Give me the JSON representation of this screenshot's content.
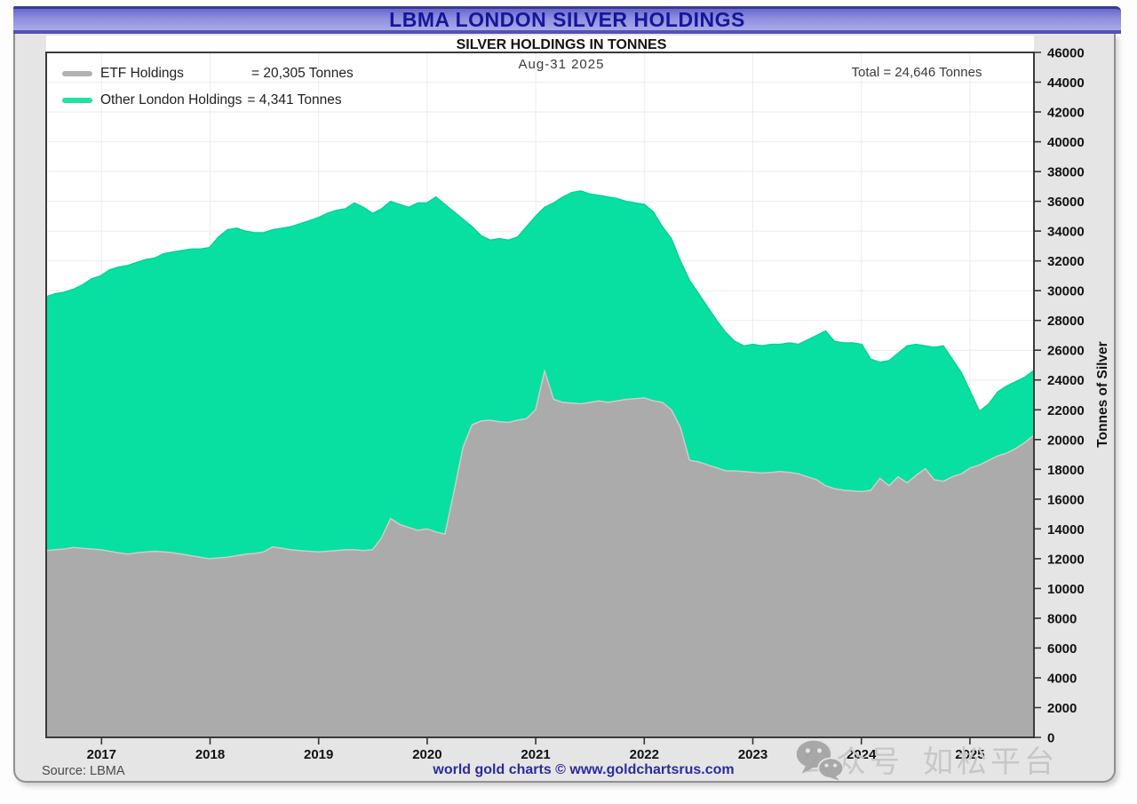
{
  "title_bar": {
    "title": "LBMA LONDON SILVER HOLDINGS"
  },
  "chart_header": {
    "subtitle": "SILVER HOLDINGS IN TONNES",
    "date_label": "Aug-31 2025",
    "total_label": "Total = 24,646 Tonnes"
  },
  "legend": {
    "items": [
      {
        "label": "ETF Holdings",
        "value": "= 20,305 Tonnes",
        "color": "#b2b2b2"
      },
      {
        "label": "Other London Holdings",
        "value": "= 4,341 Tonnes",
        "color": "#1fe3a1"
      }
    ]
  },
  "footer": {
    "source": "Source: LBMA",
    "credit": "world gold charts © www.goldchartsrus.com"
  },
  "watermark": {
    "icon": "wechat-icon",
    "text_1": "公众号",
    "text_2": "如松平台"
  },
  "chart_data": {
    "type": "area",
    "stacked": true,
    "title": "SILVER HOLDINGS IN TONNES",
    "ylabel": "Tonnes of Silver",
    "grid": true,
    "legend_position": "top-left",
    "as_of_date": "Aug-31 2025",
    "total_tonnes": 24646,
    "y_axis": {
      "min": 0,
      "max": 46000,
      "step": 2000
    },
    "x_start_decimal_year": 2016.49,
    "x_end_decimal_year": 2025.59,
    "x_monthly_from": "2016-07",
    "x_monthly_to": "2025-08",
    "x_ticks": [
      "2017",
      "2018",
      "2019",
      "2020",
      "2021",
      "2022",
      "2023",
      "2024",
      "2025"
    ],
    "series": [
      {
        "name": "ETF Holdings",
        "color": "#ababab",
        "edge_color": "#cccccc",
        "final_value_tonnes": 20305,
        "values": [
          12550,
          12600,
          12650,
          12750,
          12700,
          12650,
          12600,
          12500,
          12400,
          12300,
          12400,
          12450,
          12500,
          12450,
          12400,
          12300,
          12200,
          12100,
          12000,
          12050,
          12100,
          12200,
          12300,
          12350,
          12450,
          12800,
          12700,
          12600,
          12550,
          12500,
          12450,
          12500,
          12550,
          12600,
          12600,
          12550,
          12600,
          13400,
          14700,
          14300,
          14100,
          13900,
          14000,
          13800,
          13650,
          16500,
          19500,
          21000,
          21250,
          21300,
          21200,
          21150,
          21300,
          21400,
          22000,
          24600,
          22700,
          22500,
          22450,
          22400,
          22500,
          22600,
          22500,
          22600,
          22700,
          22750,
          22800,
          22600,
          22500,
          22000,
          20800,
          18600,
          18500,
          18300,
          18100,
          17900,
          17900,
          17850,
          17800,
          17750,
          17800,
          17850,
          17800,
          17700,
          17500,
          17300,
          16900,
          16700,
          16600,
          16550,
          16500,
          16600,
          17400,
          16900,
          17500,
          17100,
          17600,
          18050,
          17300,
          17200,
          17500,
          17700,
          18100,
          18300,
          18600,
          18900,
          19100,
          19400,
          19800,
          20305
        ]
      },
      {
        "name": "Other London Holdings",
        "color": "#07e0a0",
        "edge_color": "#00cf93",
        "final_value_tonnes": 4341,
        "values": [
          17050,
          17200,
          17250,
          17350,
          17700,
          18150,
          18400,
          18900,
          19200,
          19400,
          19500,
          19650,
          19700,
          20050,
          20200,
          20400,
          20600,
          20700,
          20900,
          21550,
          22000,
          22000,
          21700,
          21550,
          21450,
          21300,
          21500,
          21700,
          21950,
          22200,
          22450,
          22700,
          22850,
          22900,
          23300,
          23050,
          22600,
          22100,
          21300,
          21500,
          21500,
          22000,
          21900,
          22500,
          22150,
          18800,
          15300,
          13300,
          12450,
          12100,
          12300,
          12250,
          12300,
          12900,
          13000,
          11000,
          13200,
          13800,
          14150,
          14300,
          14000,
          13800,
          13800,
          13600,
          13300,
          13150,
          13000,
          12700,
          11800,
          11500,
          11200,
          12100,
          11300,
          10600,
          9900,
          9300,
          8700,
          8450,
          8600,
          8550,
          8600,
          8550,
          8700,
          8700,
          9200,
          9700,
          10400,
          9900,
          9900,
          9950,
          9900,
          8800,
          7800,
          8400,
          8300,
          9200,
          8800,
          8250,
          8900,
          9100,
          7900,
          6800,
          5100,
          3600,
          3800,
          4300,
          4500,
          4500,
          4400,
          4341
        ]
      }
    ]
  }
}
